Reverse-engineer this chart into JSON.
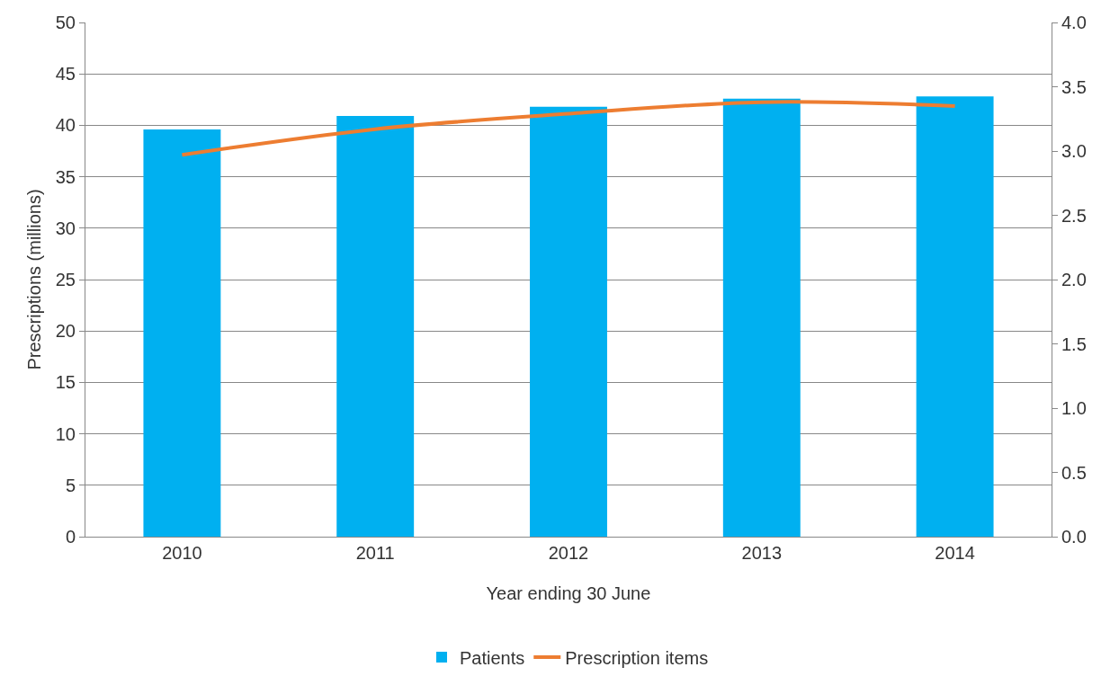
{
  "chart_data": {
    "type": "bar",
    "xlabel": "Year ending 30 June",
    "ylabel": "Prescriptions (millions)",
    "categories": [
      "2010",
      "2011",
      "2012",
      "2013",
      "2014"
    ],
    "series": [
      {
        "name": "Patients",
        "color": "#00b0f0",
        "values": [
          39.6,
          40.9,
          41.8,
          42.6,
          42.8
        ]
      },
      {
        "name": "Prescription items",
        "type": "line",
        "axis": "y2",
        "color": "#ed7d31",
        "values": [
          2.97,
          3.17,
          3.29,
          3.38,
          3.35
        ],
        "marker": "none",
        "line_style": "solid"
      }
    ],
    "ylim": [
      0,
      50
    ],
    "yticks": [
      0,
      5,
      10,
      15,
      20,
      25,
      30,
      35,
      40,
      45,
      50
    ],
    "y2lim": [
      0,
      4
    ],
    "y2ticks": [
      {
        "value": 0,
        "label": "0.0"
      },
      {
        "value": 0.5,
        "label": "0.5"
      },
      {
        "value": 1,
        "label": "1.0"
      },
      {
        "value": 1.5,
        "label": "1.5"
      },
      {
        "value": 2,
        "label": "2.0"
      },
      {
        "value": 2.5,
        "label": "2.5"
      },
      {
        "value": 3,
        "label": "3.0"
      },
      {
        "value": 3.5,
        "label": "3.5"
      },
      {
        "value": 4,
        "label": "4.0"
      }
    ],
    "grid": "y",
    "legend": "bottom"
  }
}
